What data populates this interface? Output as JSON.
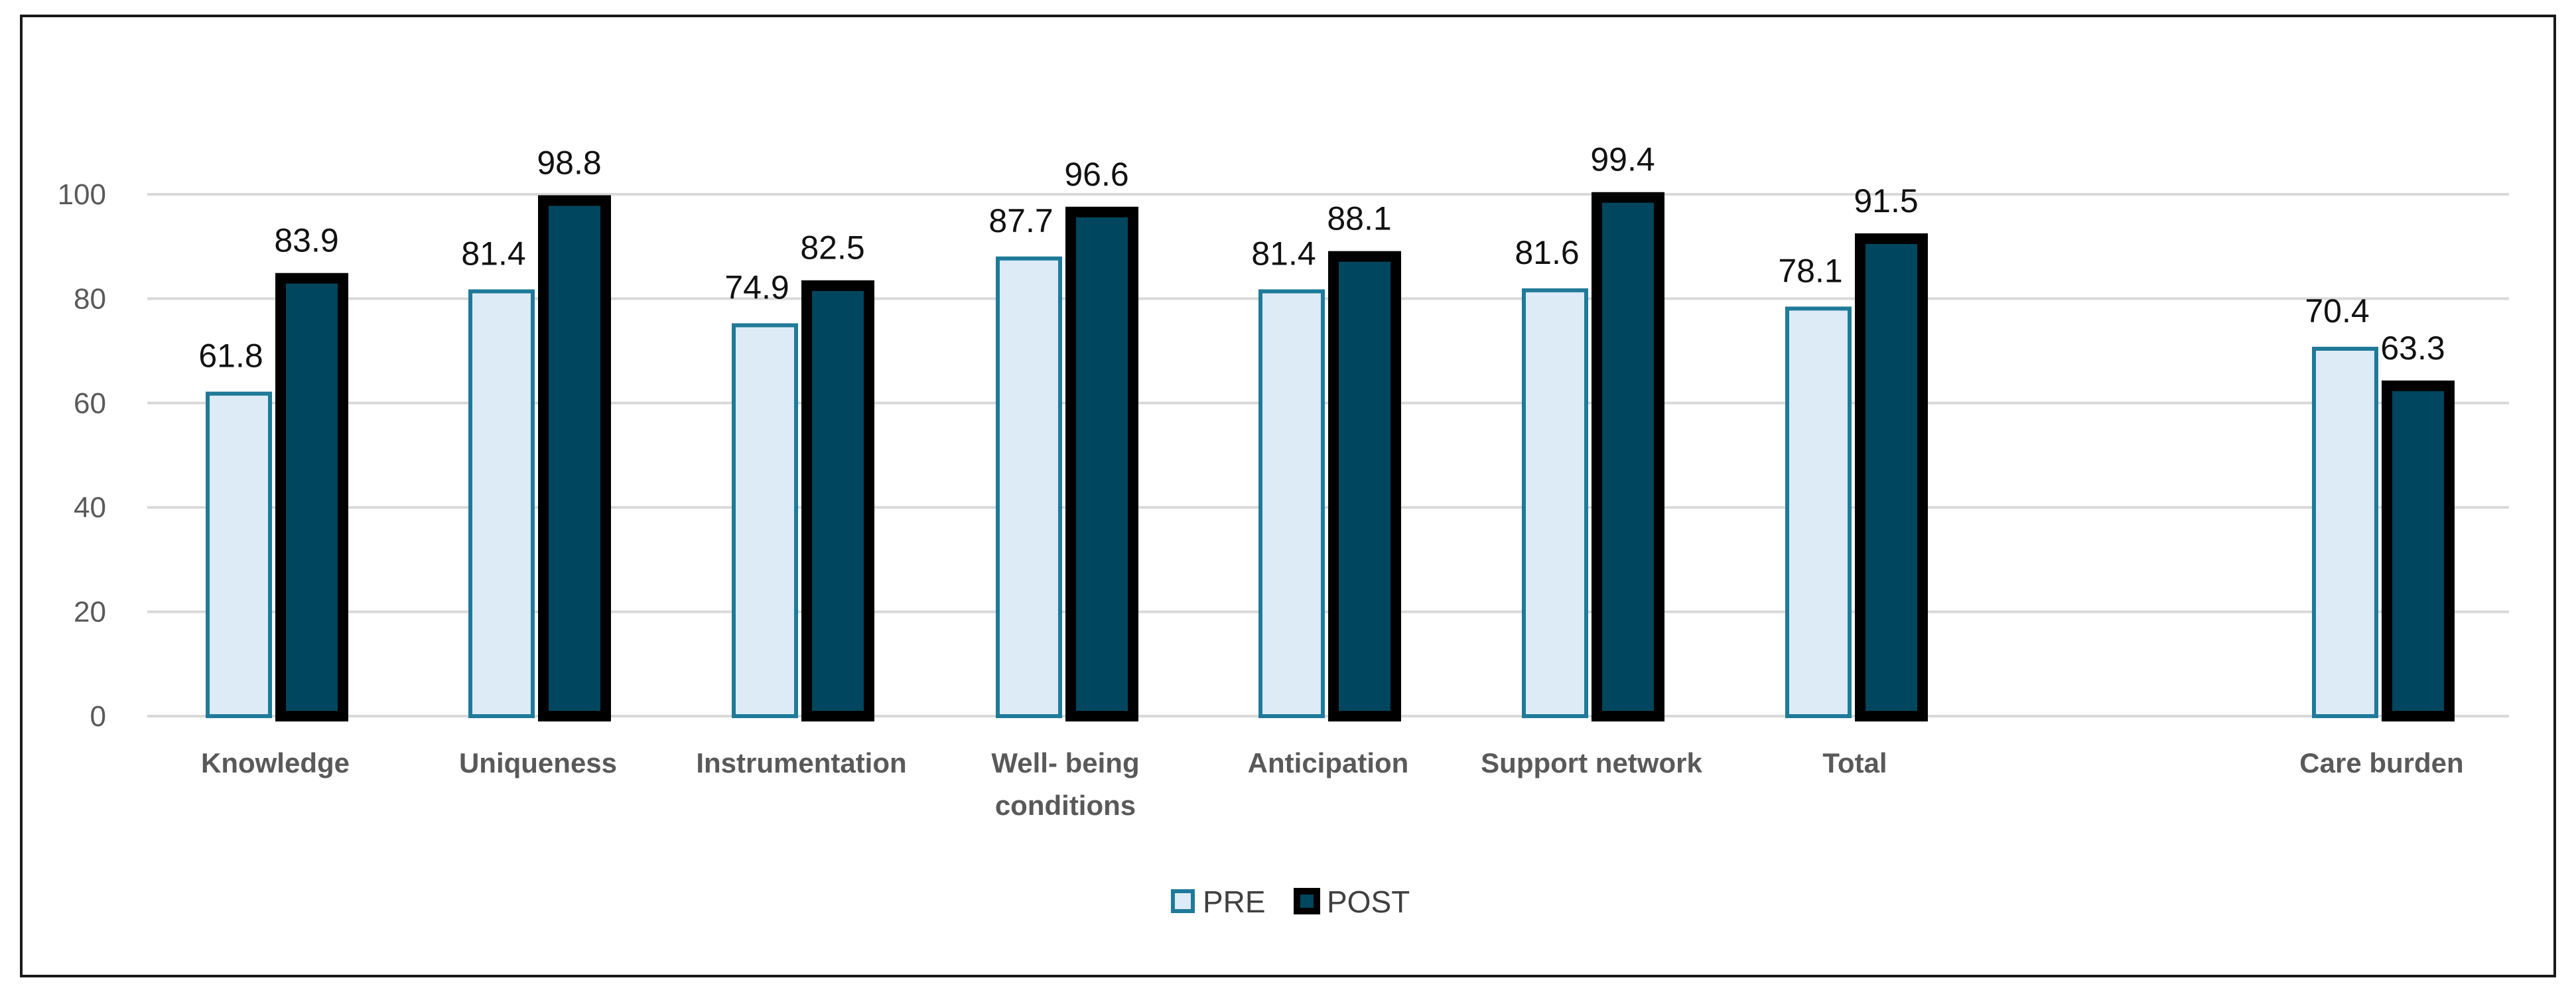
{
  "chart_data": {
    "type": "bar",
    "title": "",
    "xlabel": "",
    "ylabel": "",
    "ylim": [
      0,
      100
    ],
    "yticks": [
      0,
      20,
      40,
      60,
      80,
      100
    ],
    "grid": true,
    "legend_position": "bottom-center",
    "categories": [
      [
        "Knowledge"
      ],
      [
        "Uniqueness"
      ],
      [
        "Instrumentation"
      ],
      [
        "Well- being",
        "conditions"
      ],
      [
        "Anticipation"
      ],
      [
        "Support network"
      ],
      [
        "Total"
      ],
      [
        "Care burden"
      ]
    ],
    "series": [
      {
        "name": "PRE",
        "values": [
          61.8,
          81.4,
          74.9,
          87.7,
          81.4,
          81.6,
          78.1,
          70.4
        ],
        "fill": "#DDEBF7",
        "stroke": "#1F7A99"
      },
      {
        "name": "POST",
        "values": [
          83.9,
          98.8,
          82.5,
          96.6,
          88.1,
          99.4,
          91.5,
          63.3
        ],
        "fill": "#00465F",
        "stroke": "#000000"
      }
    ],
    "data_labels": {
      "PRE": [
        "61.8",
        "81.4",
        "74.9",
        "87.7",
        "81.4",
        "81.6",
        "78.1",
        "70.4"
      ],
      "POST": [
        "83.9",
        "98.8",
        "82.5",
        "96.6",
        "88.1",
        "99.4",
        "91.5",
        "63.3"
      ]
    }
  }
}
